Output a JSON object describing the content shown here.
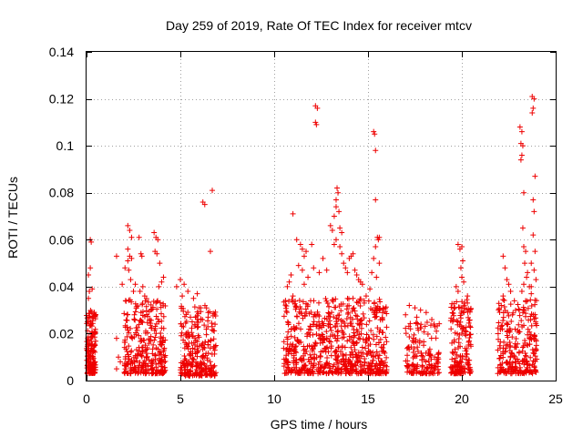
{
  "chart_data": {
    "type": "scatter",
    "title": "Day 259 of 2019, Rate Of TEC Index for receiver mtcv",
    "xlabel": "GPS time / hours",
    "ylabel": "ROTI / TECUs",
    "xlim": [
      0,
      25
    ],
    "ylim": [
      0,
      0.14
    ],
    "xticks": [
      0,
      5,
      10,
      15,
      20,
      25
    ],
    "yticks": [
      0,
      0.02,
      0.04,
      0.06,
      0.08,
      0.1,
      0.12,
      0.14
    ],
    "xtick_labels": [
      "0",
      "5",
      "10",
      "15",
      "20",
      "25"
    ],
    "ytick_labels": [
      "0",
      "0.02",
      "0.04",
      "0.06",
      "0.08",
      "0.1",
      "0.12",
      "0.14"
    ],
    "grid": true,
    "marker": "plus",
    "color": "#ee0000",
    "clusters": [
      {
        "x_range": [
          0.0,
          0.5
        ],
        "y_range": [
          0.003,
          0.03
        ],
        "count": 160
      },
      {
        "x_range": [
          2.0,
          4.2
        ],
        "y_range": [
          0.003,
          0.035
        ],
        "count": 320
      },
      {
        "x_range": [
          5.0,
          6.9
        ],
        "y_range": [
          0.002,
          0.032
        ],
        "count": 260
      },
      {
        "x_range": [
          10.5,
          16.0
        ],
        "y_range": [
          0.003,
          0.035
        ],
        "count": 700
      },
      {
        "x_range": [
          17.0,
          18.8
        ],
        "y_range": [
          0.003,
          0.025
        ],
        "count": 150
      },
      {
        "x_range": [
          19.4,
          20.5
        ],
        "y_range": [
          0.003,
          0.035
        ],
        "count": 170
      },
      {
        "x_range": [
          21.9,
          24.0
        ],
        "y_range": [
          0.003,
          0.035
        ],
        "count": 260
      }
    ],
    "series": [
      {
        "name": "ROTI",
        "points": [
          [
            0.1,
            0.035
          ],
          [
            0.15,
            0.038
          ],
          [
            0.2,
            0.06
          ],
          [
            0.25,
            0.059
          ],
          [
            0.2,
            0.048
          ],
          [
            0.3,
            0.039
          ],
          [
            0.05,
            0.025
          ],
          [
            0.35,
            0.02
          ],
          [
            0.1,
            0.045
          ],
          [
            1.6,
            0.018
          ],
          [
            1.7,
            0.01
          ],
          [
            1.8,
            0.008
          ],
          [
            1.6,
            0.005
          ],
          [
            1.6,
            0.053
          ],
          [
            1.9,
            0.041
          ],
          [
            2.05,
            0.048
          ],
          [
            2.2,
            0.066
          ],
          [
            2.3,
            0.064
          ],
          [
            2.4,
            0.061
          ],
          [
            2.2,
            0.056
          ],
          [
            2.3,
            0.053
          ],
          [
            2.4,
            0.052
          ],
          [
            2.2,
            0.051
          ],
          [
            2.25,
            0.047
          ],
          [
            2.35,
            0.043
          ],
          [
            2.5,
            0.038
          ],
          [
            2.6,
            0.041
          ],
          [
            2.8,
            0.061
          ],
          [
            2.9,
            0.054
          ],
          [
            2.95,
            0.053
          ],
          [
            3.0,
            0.04
          ],
          [
            2.85,
            0.038
          ],
          [
            3.1,
            0.036
          ],
          [
            3.6,
            0.063
          ],
          [
            3.7,
            0.061
          ],
          [
            3.8,
            0.06
          ],
          [
            3.65,
            0.055
          ],
          [
            3.75,
            0.054
          ],
          [
            3.9,
            0.05
          ],
          [
            4.0,
            0.042
          ],
          [
            4.1,
            0.044
          ],
          [
            3.85,
            0.04
          ],
          [
            4.8,
            0.04
          ],
          [
            5.0,
            0.043
          ],
          [
            5.2,
            0.041
          ],
          [
            5.4,
            0.038
          ],
          [
            5.7,
            0.035
          ],
          [
            5.9,
            0.037
          ],
          [
            5.1,
            0.036
          ],
          [
            6.0,
            0.031
          ],
          [
            6.2,
            0.076
          ],
          [
            6.3,
            0.075
          ],
          [
            6.6,
            0.055
          ],
          [
            6.7,
            0.081
          ],
          [
            11.0,
            0.071
          ],
          [
            11.0,
            0.036
          ],
          [
            10.7,
            0.04
          ],
          [
            10.8,
            0.042
          ],
          [
            10.9,
            0.045
          ],
          [
            11.2,
            0.06
          ],
          [
            11.4,
            0.058
          ],
          [
            11.5,
            0.056
          ],
          [
            11.6,
            0.053
          ],
          [
            11.7,
            0.055
          ],
          [
            11.3,
            0.049
          ],
          [
            11.5,
            0.047
          ],
          [
            11.8,
            0.044
          ],
          [
            11.6,
            0.041
          ],
          [
            12.2,
            0.117
          ],
          [
            12.3,
            0.116
          ],
          [
            12.2,
            0.11
          ],
          [
            12.25,
            0.109
          ],
          [
            12.0,
            0.058
          ],
          [
            12.1,
            0.048
          ],
          [
            12.4,
            0.046
          ],
          [
            12.6,
            0.052
          ],
          [
            12.8,
            0.047
          ],
          [
            13.0,
            0.066
          ],
          [
            13.1,
            0.064
          ],
          [
            13.2,
            0.07
          ],
          [
            13.3,
            0.074
          ],
          [
            13.3,
            0.077
          ],
          [
            13.35,
            0.082
          ],
          [
            13.4,
            0.08
          ],
          [
            13.45,
            0.072
          ],
          [
            13.5,
            0.065
          ],
          [
            13.6,
            0.063
          ],
          [
            13.2,
            0.058
          ],
          [
            13.3,
            0.06
          ],
          [
            13.5,
            0.057
          ],
          [
            13.6,
            0.054
          ],
          [
            13.7,
            0.05
          ],
          [
            13.8,
            0.048
          ],
          [
            13.9,
            0.046
          ],
          [
            14.0,
            0.052
          ],
          [
            14.1,
            0.053
          ],
          [
            14.2,
            0.054
          ],
          [
            14.3,
            0.047
          ],
          [
            14.4,
            0.045
          ],
          [
            14.5,
            0.043
          ],
          [
            14.6,
            0.042
          ],
          [
            14.7,
            0.041
          ],
          [
            14.2,
            0.035
          ],
          [
            14.8,
            0.034
          ],
          [
            14.9,
            0.036
          ],
          [
            15.3,
            0.106
          ],
          [
            15.35,
            0.105
          ],
          [
            15.4,
            0.098
          ],
          [
            15.4,
            0.077
          ],
          [
            15.5,
            0.061
          ],
          [
            15.55,
            0.06
          ],
          [
            15.6,
            0.061
          ],
          [
            15.4,
            0.057
          ],
          [
            15.3,
            0.052
          ],
          [
            15.6,
            0.05
          ],
          [
            15.2,
            0.046
          ],
          [
            15.45,
            0.044
          ],
          [
            15.1,
            0.039
          ],
          [
            17.2,
            0.032
          ],
          [
            17.5,
            0.031
          ],
          [
            17.8,
            0.03
          ],
          [
            18.1,
            0.029
          ],
          [
            18.4,
            0.026
          ],
          [
            17.0,
            0.028
          ],
          [
            17.6,
            0.027
          ],
          [
            19.8,
            0.058
          ],
          [
            19.9,
            0.056
          ],
          [
            20.0,
            0.057
          ],
          [
            20.05,
            0.051
          ],
          [
            19.95,
            0.048
          ],
          [
            20.0,
            0.044
          ],
          [
            19.7,
            0.04
          ],
          [
            20.1,
            0.042
          ],
          [
            19.8,
            0.038
          ],
          [
            20.3,
            0.036
          ],
          [
            22.2,
            0.053
          ],
          [
            22.3,
            0.048
          ],
          [
            22.4,
            0.043
          ],
          [
            22.5,
            0.041
          ],
          [
            22.2,
            0.036
          ],
          [
            22.6,
            0.038
          ],
          [
            22.8,
            0.034
          ],
          [
            22.1,
            0.032
          ],
          [
            23.1,
            0.108
          ],
          [
            23.2,
            0.106
          ],
          [
            23.15,
            0.101
          ],
          [
            23.25,
            0.1
          ],
          [
            23.2,
            0.096
          ],
          [
            23.15,
            0.094
          ],
          [
            23.3,
            0.08
          ],
          [
            23.25,
            0.065
          ],
          [
            23.3,
            0.057
          ],
          [
            23.4,
            0.055
          ],
          [
            23.35,
            0.05
          ],
          [
            23.5,
            0.046
          ],
          [
            23.45,
            0.044
          ],
          [
            23.3,
            0.041
          ],
          [
            23.6,
            0.04
          ],
          [
            23.2,
            0.038
          ],
          [
            23.7,
            0.037
          ],
          [
            23.4,
            0.034
          ],
          [
            23.75,
            0.121
          ],
          [
            23.85,
            0.12
          ],
          [
            23.8,
            0.116
          ],
          [
            23.75,
            0.114
          ],
          [
            23.9,
            0.087
          ],
          [
            23.8,
            0.077
          ],
          [
            23.85,
            0.072
          ],
          [
            23.8,
            0.062
          ],
          [
            23.9,
            0.055
          ],
          [
            23.7,
            0.05
          ],
          [
            23.85,
            0.047
          ],
          [
            23.95,
            0.043
          ],
          [
            23.7,
            0.04
          ]
        ]
      }
    ]
  }
}
